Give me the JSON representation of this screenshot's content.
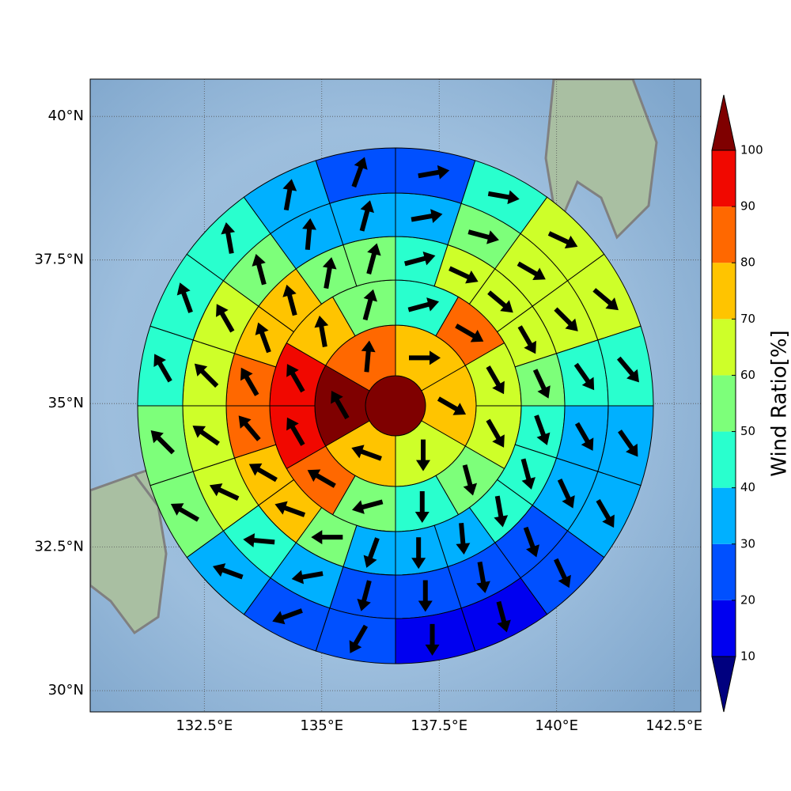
{
  "chart_data": {
    "type": "map",
    "map": {
      "xlim": [
        130.07,
        143.07
      ],
      "ylim": [
        29.63,
        40.65
      ],
      "xticks": [
        {
          "value": 132.5,
          "label": "132.5°E"
        },
        {
          "value": 135,
          "label": "135°E"
        },
        {
          "value": 137.5,
          "label": "137.5°E"
        },
        {
          "value": 140,
          "label": "140°E"
        },
        {
          "value": 142.5,
          "label": "142.5°E"
        }
      ],
      "yticks": [
        {
          "value": 30,
          "label": "30°N"
        },
        {
          "value": 32.5,
          "label": "32.5°N"
        },
        {
          "value": 35,
          "label": "35°N"
        },
        {
          "value": 37.5,
          "label": "37.5°N"
        },
        {
          "value": 40,
          "label": "40°N"
        }
      ],
      "grid": true
    },
    "center": {
      "value": 105
    },
    "rings": [
      {
        "values": [
          75,
          75,
          65,
          75,
          105,
          85
        ],
        "directions": [
          90,
          120,
          180,
          290,
          330,
          5
        ]
      },
      {
        "values": [
          45,
          85,
          65,
          65,
          55,
          45,
          55,
          85,
          95,
          95,
          75,
          55
        ],
        "directions": [
          75,
          120,
          150,
          150,
          165,
          180,
          255,
          300,
          330,
          330,
          350,
          15
        ]
      },
      {
        "values": [
          45,
          65,
          65,
          65,
          55,
          45,
          45,
          45,
          35,
          35,
          35,
          55,
          75,
          75,
          85,
          85,
          75,
          75,
          55,
          55
        ],
        "directions": [
          75,
          115,
          130,
          150,
          155,
          160,
          165,
          170,
          175,
          180,
          200,
          270,
          290,
          300,
          320,
          330,
          340,
          345,
          10,
          15
        ]
      },
      {
        "values": [
          35,
          55,
          65,
          65,
          45,
          35,
          35,
          25,
          25,
          25,
          25,
          35,
          45,
          65,
          65,
          65,
          65,
          55,
          35,
          35
        ],
        "directions": [
          80,
          105,
          120,
          135,
          145,
          150,
          155,
          160,
          170,
          180,
          195,
          260,
          275,
          295,
          305,
          315,
          330,
          345,
          5,
          15
        ]
      },
      {
        "values": [
          25,
          45,
          65,
          65,
          45,
          35,
          35,
          25,
          15,
          15,
          25,
          25,
          35,
          55,
          55,
          45,
          45,
          45,
          35,
          25
        ],
        "directions": [
          80,
          100,
          115,
          130,
          140,
          145,
          150,
          155,
          165,
          180,
          210,
          250,
          290,
          300,
          315,
          330,
          340,
          350,
          10,
          20
        ]
      }
    ],
    "colorbar": {
      "levels": [
        10,
        20,
        30,
        40,
        50,
        60,
        70,
        80,
        90,
        100
      ],
      "colors": [
        "#00007f",
        "#0000f0",
        "#0050ff",
        "#00b0ff",
        "#29ffce",
        "#7dff7a",
        "#ceff29",
        "#ffc400",
        "#ff6800",
        "#f10800",
        "#7f0000"
      ],
      "label": "Wind Ratio[%]"
    }
  }
}
